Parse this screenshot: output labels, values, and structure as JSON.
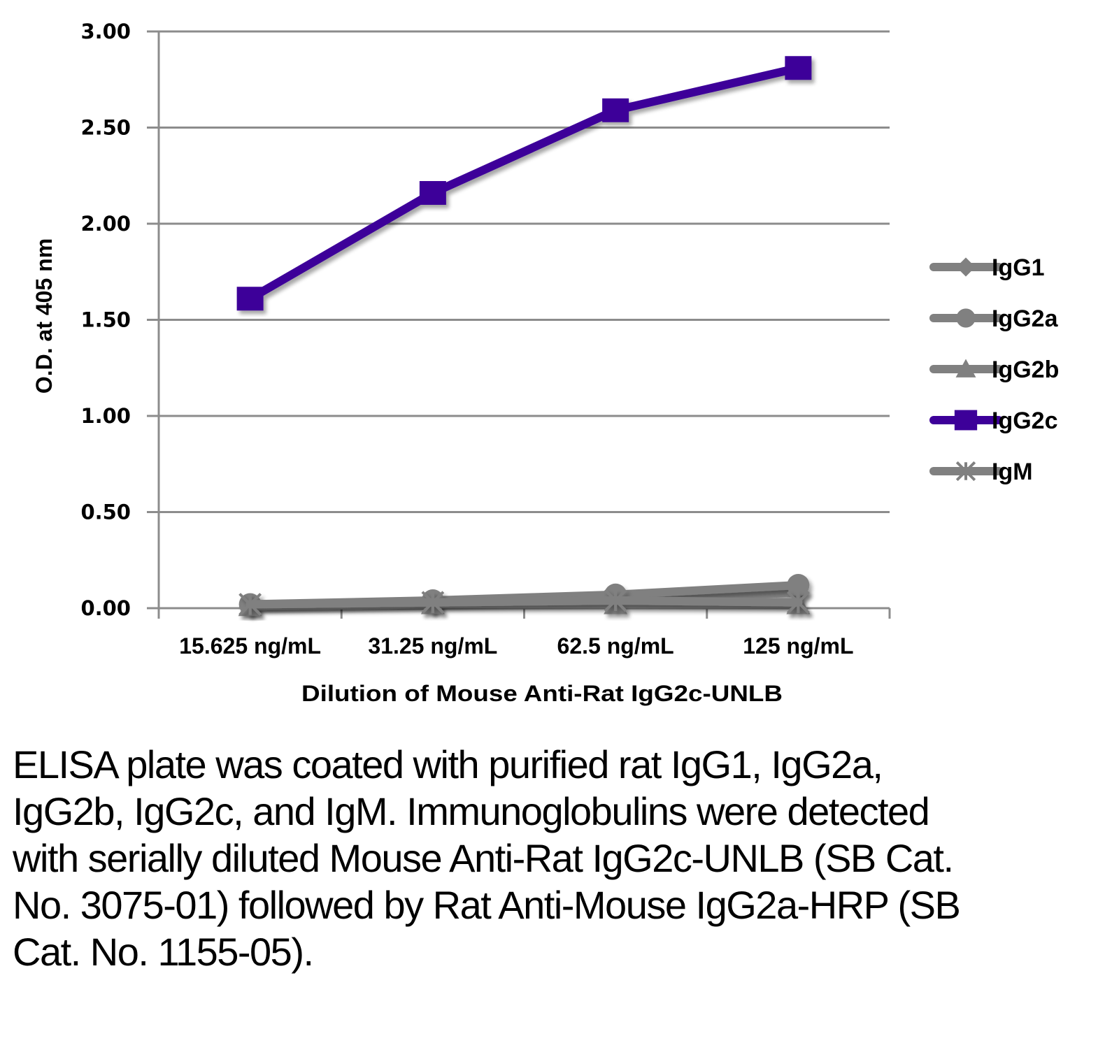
{
  "chart_data": {
    "type": "line",
    "title": "",
    "xlabel": "Dilution of Mouse Anti-Rat IgG2c-UNLB",
    "ylabel": "O.D. at 405 nm",
    "categories": [
      "15.625 ng/mL",
      "31.25 ng/mL",
      "62.5 ng/mL",
      "125 ng/mL"
    ],
    "ylim": [
      0,
      3
    ],
    "yticks": [
      "0.00",
      "0.50",
      "1.00",
      "1.50",
      "2.00",
      "2.50",
      "3.00"
    ],
    "ytick_values": [
      0,
      0.5,
      1.0,
      1.5,
      2.0,
      2.5,
      3.0
    ],
    "grid": true,
    "legend_position": "right",
    "series": [
      {
        "name": "IgG1",
        "marker": "diamond",
        "color": "#808080",
        "values": [
          0.02,
          0.03,
          0.05,
          0.08
        ]
      },
      {
        "name": "IgG2a",
        "marker": "circle",
        "color": "#808080",
        "values": [
          0.02,
          0.04,
          0.07,
          0.12
        ]
      },
      {
        "name": "IgG2b",
        "marker": "triangle",
        "color": "#808080",
        "values": [
          0.01,
          0.02,
          0.02,
          0.02
        ]
      },
      {
        "name": "IgG2c",
        "marker": "square",
        "color": "#3D0099",
        "values": [
          1.61,
          2.16,
          2.59,
          2.81
        ]
      },
      {
        "name": "IgM",
        "marker": "asterisk",
        "color": "#808080",
        "values": [
          0.02,
          0.03,
          0.04,
          0.03
        ]
      }
    ]
  },
  "caption": "ELISA plate was coated with purified rat IgG1, IgG2a, IgG2b, IgG2c, and IgM.  Immunoglobulins were detected with serially diluted Mouse Anti-Rat IgG2c-UNLB (SB Cat. No. 3075-01) followed by Rat Anti-Mouse IgG2a-HRP (SB Cat. No. 1155-05)."
}
